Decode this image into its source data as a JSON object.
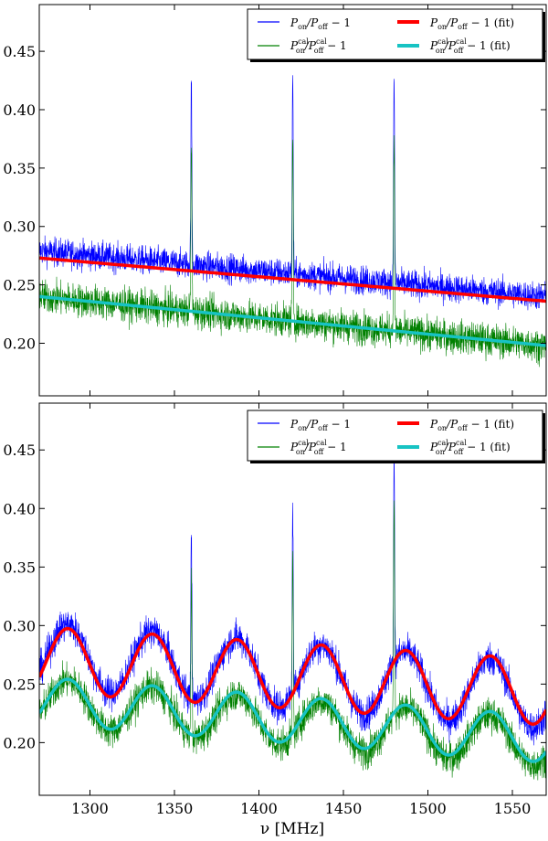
{
  "chart_data": [
    {
      "type": "line",
      "xlim": [
        1270,
        1570
      ],
      "ylim": [
        0.155,
        0.49
      ],
      "yticks": [
        "0.20",
        "0.25",
        "0.30",
        "0.35",
        "0.40",
        "0.45"
      ],
      "ytick_values": [
        0.2,
        0.25,
        0.3,
        0.35,
        0.4,
        0.45
      ],
      "xticks": [],
      "legend": {
        "placement": "top-right"
      },
      "series": [
        {
          "name": "P_on/P_off − 1",
          "color": "#0000ff",
          "kind": "raw",
          "trend": {
            "x": [
              1270,
              1570
            ],
            "y": [
              0.279,
              0.24
            ]
          },
          "noise": 0.006,
          "spikes": [
            {
              "x": 1360,
              "y": 0.423
            },
            {
              "x": 1420,
              "y": 0.43
            },
            {
              "x": 1480,
              "y": 0.43
            }
          ]
        },
        {
          "name": "P_on^cal/P_off^cal − 1",
          "color": "#008000",
          "kind": "raw",
          "trend": {
            "x": [
              1270,
              1570
            ],
            "y": [
              0.24,
              0.198
            ]
          },
          "noise": 0.007,
          "spikes": [
            {
              "x": 1360,
              "y": 0.37
            },
            {
              "x": 1420,
              "y": 0.37
            },
            {
              "x": 1480,
              "y": 0.375
            }
          ]
        },
        {
          "name": "P_on/P_off − 1 (fit)",
          "color": "#ff0000",
          "kind": "fit",
          "trend": {
            "x": [
              1270,
              1570
            ],
            "y": [
              0.273,
              0.236
            ]
          }
        },
        {
          "name": "P_on^cal/P_off^cal − 1 (fit)",
          "color": "#17c3c3",
          "kind": "fit",
          "trend": {
            "x": [
              1270,
              1570
            ],
            "y": [
              0.24,
              0.198
            ]
          }
        }
      ]
    },
    {
      "type": "line",
      "xlim": [
        1270,
        1570
      ],
      "ylim": [
        0.155,
        0.49
      ],
      "yticks": [
        "0.20",
        "0.25",
        "0.30",
        "0.35",
        "0.40",
        "0.45"
      ],
      "ytick_values": [
        0.2,
        0.25,
        0.3,
        0.35,
        0.4,
        0.45
      ],
      "xticks": [
        "1300",
        "1350",
        "1400",
        "1450",
        "1500",
        "1550"
      ],
      "xtick_values": [
        1300,
        1350,
        1400,
        1450,
        1500,
        1550
      ],
      "xlabel": "ν [MHz]",
      "legend": {
        "placement": "top-right"
      },
      "series": [
        {
          "name": "P_on/P_off − 1",
          "color": "#0000ff",
          "kind": "raw",
          "trend": {
            "x": [
              1270,
              1570
            ],
            "y": [
              0.275,
              0.24
            ]
          },
          "ripple": {
            "amplitude": 0.028,
            "period": 50,
            "phase_x": 1287
          },
          "noise": 0.007,
          "spikes": [
            {
              "x": 1360,
              "y": 0.387
            },
            {
              "x": 1420,
              "y": 0.4
            },
            {
              "x": 1480,
              "y": 0.448
            }
          ]
        },
        {
          "name": "P_on^cal/P_off^cal − 1",
          "color": "#008000",
          "kind": "raw",
          "trend": {
            "x": [
              1270,
              1570
            ],
            "y": [
              0.235,
              0.2
            ]
          },
          "ripple": {
            "amplitude": 0.02,
            "period": 50,
            "phase_x": 1287
          },
          "noise": 0.007,
          "spikes": [
            {
              "x": 1360,
              "y": 0.34
            },
            {
              "x": 1420,
              "y": 0.36
            },
            {
              "x": 1480,
              "y": 0.41
            }
          ]
        },
        {
          "name": "P_on/P_off − 1 (fit)",
          "color": "#ff0000",
          "kind": "fit",
          "trend": {
            "x": [
              1270,
              1570
            ],
            "y": [
              0.271,
              0.243
            ]
          },
          "ripple": {
            "amplitude": 0.028,
            "period": 50,
            "phase_x": 1287
          }
        },
        {
          "name": "P_on^cal/P_off^cal − 1 (fit)",
          "color": "#17c3c3",
          "kind": "fit",
          "trend": {
            "x": [
              1270,
              1570
            ],
            "y": [
              0.236,
              0.203
            ]
          },
          "ripple": {
            "amplitude": 0.02,
            "period": 50,
            "phase_x": 1287
          }
        }
      ]
    }
  ]
}
